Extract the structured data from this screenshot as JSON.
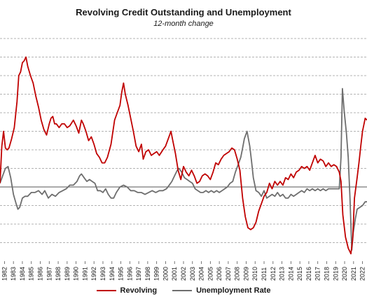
{
  "chart_data": {
    "type": "line",
    "title": "Revolving Credit Outstanding and Unemployment",
    "subtitle": "12-month change",
    "xlabel": "",
    "ylabel": "",
    "x_range": [
      1982,
      2023
    ],
    "x_tick_labels": [
      "1982",
      "1983",
      "1984",
      "1985",
      "1986",
      "1987",
      "1988",
      "1989",
      "1990",
      "1991",
      "1992",
      "1993",
      "1994",
      "1995",
      "1996",
      "1997",
      "1998",
      "1999",
      "2000",
      "2001",
      "2002",
      "2003",
      "2004",
      "2005",
      "2006",
      "2007",
      "2008",
      "2009",
      "2010",
      "2011",
      "2012",
      "2013",
      "2014",
      "2015",
      "2016",
      "2017",
      "2018",
      "2019",
      "2020",
      "2021",
      "2022"
    ],
    "y_range": [
      -4,
      8
    ],
    "grid": "horizontal dashed",
    "zero_line": 0,
    "legend_position": "bottom",
    "series": [
      {
        "name": "Revolving",
        "color": "#c00000",
        "points": [
          [
            1982.0,
            0.2
          ],
          [
            1982.2,
            2.2
          ],
          [
            1982.4,
            3.0
          ],
          [
            1982.6,
            2.1
          ],
          [
            1982.8,
            2.0
          ],
          [
            1983.0,
            2.1
          ],
          [
            1983.3,
            2.6
          ],
          [
            1983.6,
            3.2
          ],
          [
            1983.9,
            4.6
          ],
          [
            1984.1,
            6.0
          ],
          [
            1984.3,
            6.2
          ],
          [
            1984.5,
            6.7
          ],
          [
            1984.7,
            6.8
          ],
          [
            1984.9,
            7.0
          ],
          [
            1985.1,
            6.5
          ],
          [
            1985.4,
            6.0
          ],
          [
            1985.7,
            5.6
          ],
          [
            1986.0,
            4.9
          ],
          [
            1986.3,
            4.3
          ],
          [
            1986.6,
            3.6
          ],
          [
            1986.9,
            3.1
          ],
          [
            1987.2,
            2.8
          ],
          [
            1987.5,
            3.4
          ],
          [
            1987.7,
            3.7
          ],
          [
            1987.9,
            3.8
          ],
          [
            1988.1,
            3.4
          ],
          [
            1988.3,
            3.4
          ],
          [
            1988.6,
            3.2
          ],
          [
            1988.9,
            3.4
          ],
          [
            1989.2,
            3.4
          ],
          [
            1989.5,
            3.2
          ],
          [
            1989.8,
            3.3
          ],
          [
            1990.2,
            3.6
          ],
          [
            1990.5,
            3.3
          ],
          [
            1990.8,
            2.9
          ],
          [
            1991.1,
            3.6
          ],
          [
            1991.3,
            3.4
          ],
          [
            1991.6,
            3.0
          ],
          [
            1991.9,
            2.5
          ],
          [
            1992.2,
            2.7
          ],
          [
            1992.5,
            2.3
          ],
          [
            1992.8,
            1.8
          ],
          [
            1993.1,
            1.6
          ],
          [
            1993.4,
            1.3
          ],
          [
            1993.7,
            1.3
          ],
          [
            1994.0,
            1.6
          ],
          [
            1994.4,
            2.3
          ],
          [
            1994.8,
            3.6
          ],
          [
            1995.1,
            4.0
          ],
          [
            1995.4,
            4.4
          ],
          [
            1995.6,
            5.1
          ],
          [
            1995.8,
            5.6
          ],
          [
            1996.0,
            5.0
          ],
          [
            1996.3,
            4.4
          ],
          [
            1996.6,
            3.7
          ],
          [
            1996.9,
            3.0
          ],
          [
            1997.2,
            2.2
          ],
          [
            1997.5,
            1.9
          ],
          [
            1997.8,
            2.3
          ],
          [
            1998.0,
            1.5
          ],
          [
            1998.3,
            1.9
          ],
          [
            1998.6,
            2.0
          ],
          [
            1998.9,
            1.7
          ],
          [
            1999.2,
            1.8
          ],
          [
            1999.5,
            1.9
          ],
          [
            1999.8,
            1.7
          ],
          [
            2000.2,
            2.0
          ],
          [
            2000.5,
            2.2
          ],
          [
            2000.8,
            2.6
          ],
          [
            2001.1,
            3.0
          ],
          [
            2001.3,
            2.5
          ],
          [
            2001.6,
            1.8
          ],
          [
            2001.9,
            0.9
          ],
          [
            2002.2,
            0.4
          ],
          [
            2002.5,
            1.1
          ],
          [
            2002.8,
            0.8
          ],
          [
            2003.1,
            0.6
          ],
          [
            2003.4,
            0.9
          ],
          [
            2003.7,
            0.6
          ],
          [
            2004.0,
            0.2
          ],
          [
            2004.3,
            0.3
          ],
          [
            2004.6,
            0.6
          ],
          [
            2004.9,
            0.7
          ],
          [
            2005.2,
            0.6
          ],
          [
            2005.5,
            0.4
          ],
          [
            2005.8,
            0.8
          ],
          [
            2006.1,
            1.3
          ],
          [
            2006.4,
            1.2
          ],
          [
            2006.7,
            1.5
          ],
          [
            2007.0,
            1.7
          ],
          [
            2007.3,
            1.8
          ],
          [
            2007.6,
            1.9
          ],
          [
            2007.9,
            2.1
          ],
          [
            2008.2,
            2.0
          ],
          [
            2008.5,
            1.5
          ],
          [
            2008.8,
            0.9
          ],
          [
            2009.1,
            -0.6
          ],
          [
            2009.4,
            -1.6
          ],
          [
            2009.7,
            -2.2
          ],
          [
            2010.0,
            -2.3
          ],
          [
            2010.3,
            -2.2
          ],
          [
            2010.6,
            -1.9
          ],
          [
            2010.9,
            -1.3
          ],
          [
            2011.2,
            -0.9
          ],
          [
            2011.5,
            -0.5
          ],
          [
            2011.8,
            -0.3
          ],
          [
            2012.1,
            0.2
          ],
          [
            2012.4,
            -0.1
          ],
          [
            2012.7,
            0.3
          ],
          [
            2013.0,
            0.1
          ],
          [
            2013.3,
            0.3
          ],
          [
            2013.6,
            0.1
          ],
          [
            2013.9,
            0.5
          ],
          [
            2014.2,
            0.4
          ],
          [
            2014.5,
            0.7
          ],
          [
            2014.8,
            0.5
          ],
          [
            2015.1,
            0.8
          ],
          [
            2015.4,
            0.9
          ],
          [
            2015.7,
            1.1
          ],
          [
            2016.0,
            1.0
          ],
          [
            2016.3,
            1.1
          ],
          [
            2016.6,
            0.9
          ],
          [
            2016.9,
            1.3
          ],
          [
            2017.2,
            1.7
          ],
          [
            2017.5,
            1.3
          ],
          [
            2017.8,
            1.5
          ],
          [
            2018.1,
            1.4
          ],
          [
            2018.4,
            1.1
          ],
          [
            2018.7,
            1.3
          ],
          [
            2019.0,
            1.1
          ],
          [
            2019.3,
            1.2
          ],
          [
            2019.6,
            1.1
          ],
          [
            2019.9,
            0.8
          ],
          [
            2020.1,
            0.3
          ],
          [
            2020.3,
            -1.5
          ],
          [
            2020.6,
            -2.7
          ],
          [
            2020.9,
            -3.3
          ],
          [
            2021.2,
            -3.6
          ],
          [
            2021.4,
            -2.8
          ],
          [
            2021.6,
            -0.6
          ],
          [
            2021.9,
            0.5
          ],
          [
            2022.1,
            1.3
          ],
          [
            2022.3,
            2.2
          ],
          [
            2022.5,
            3.0
          ],
          [
            2022.8,
            3.7
          ],
          [
            2023.0,
            3.6
          ]
        ]
      },
      {
        "name": "Unemployment Rate",
        "color": "#6e6e6e",
        "points": [
          [
            1982.0,
            0.2
          ],
          [
            1982.3,
            0.6
          ],
          [
            1982.6,
            1.0
          ],
          [
            1982.9,
            1.1
          ],
          [
            1983.2,
            0.5
          ],
          [
            1983.5,
            -0.4
          ],
          [
            1983.8,
            -0.9
          ],
          [
            1984.0,
            -1.2
          ],
          [
            1984.2,
            -1.1
          ],
          [
            1984.5,
            -0.6
          ],
          [
            1984.8,
            -0.5
          ],
          [
            1985.1,
            -0.5
          ],
          [
            1985.5,
            -0.3
          ],
          [
            1985.9,
            -0.3
          ],
          [
            1986.3,
            -0.2
          ],
          [
            1986.7,
            -0.4
          ],
          [
            1987.0,
            -0.2
          ],
          [
            1987.4,
            -0.6
          ],
          [
            1987.8,
            -0.4
          ],
          [
            1988.2,
            -0.5
          ],
          [
            1988.6,
            -0.3
          ],
          [
            1989.0,
            -0.2
          ],
          [
            1989.4,
            -0.1
          ],
          [
            1989.8,
            0.1
          ],
          [
            1990.2,
            0.1
          ],
          [
            1990.6,
            0.3
          ],
          [
            1990.9,
            0.6
          ],
          [
            1991.1,
            0.7
          ],
          [
            1991.4,
            0.5
          ],
          [
            1991.7,
            0.3
          ],
          [
            1992.0,
            0.4
          ],
          [
            1992.3,
            0.3
          ],
          [
            1992.6,
            0.2
          ],
          [
            1992.9,
            -0.2
          ],
          [
            1993.2,
            -0.2
          ],
          [
            1993.5,
            -0.3
          ],
          [
            1993.8,
            -0.1
          ],
          [
            1994.1,
            -0.4
          ],
          [
            1994.4,
            -0.6
          ],
          [
            1994.7,
            -0.6
          ],
          [
            1995.0,
            -0.3
          ],
          [
            1995.4,
            0.0
          ],
          [
            1995.8,
            0.1
          ],
          [
            1996.2,
            0.0
          ],
          [
            1996.6,
            -0.2
          ],
          [
            1997.0,
            -0.2
          ],
          [
            1997.4,
            -0.3
          ],
          [
            1997.8,
            -0.3
          ],
          [
            1998.2,
            -0.4
          ],
          [
            1998.6,
            -0.3
          ],
          [
            1999.0,
            -0.2
          ],
          [
            1999.4,
            -0.3
          ],
          [
            1999.8,
            -0.2
          ],
          [
            2000.2,
            -0.2
          ],
          [
            2000.6,
            -0.1
          ],
          [
            2000.9,
            0.1
          ],
          [
            2001.2,
            0.3
          ],
          [
            2001.5,
            0.6
          ],
          [
            2001.8,
            0.9
          ],
          [
            2002.0,
            1.0
          ],
          [
            2002.3,
            0.8
          ],
          [
            2002.6,
            0.5
          ],
          [
            2002.9,
            0.4
          ],
          [
            2003.2,
            0.3
          ],
          [
            2003.5,
            0.2
          ],
          [
            2003.8,
            -0.1
          ],
          [
            2004.1,
            -0.2
          ],
          [
            2004.4,
            -0.3
          ],
          [
            2004.7,
            -0.3
          ],
          [
            2005.0,
            -0.2
          ],
          [
            2005.3,
            -0.3
          ],
          [
            2005.6,
            -0.2
          ],
          [
            2005.9,
            -0.3
          ],
          [
            2006.2,
            -0.2
          ],
          [
            2006.5,
            -0.3
          ],
          [
            2006.8,
            -0.2
          ],
          [
            2007.1,
            -0.1
          ],
          [
            2007.4,
            0.0
          ],
          [
            2007.7,
            0.2
          ],
          [
            2008.0,
            0.3
          ],
          [
            2008.3,
            0.8
          ],
          [
            2008.6,
            1.2
          ],
          [
            2008.9,
            1.6
          ],
          [
            2009.1,
            2.1
          ],
          [
            2009.3,
            2.6
          ],
          [
            2009.6,
            3.0
          ],
          [
            2009.9,
            2.2
          ],
          [
            2010.1,
            1.4
          ],
          [
            2010.3,
            0.5
          ],
          [
            2010.6,
            -0.2
          ],
          [
            2010.9,
            -0.3
          ],
          [
            2011.2,
            -0.5
          ],
          [
            2011.5,
            -0.2
          ],
          [
            2011.8,
            -0.6
          ],
          [
            2012.1,
            -0.5
          ],
          [
            2012.4,
            -0.4
          ],
          [
            2012.7,
            -0.5
          ],
          [
            2013.0,
            -0.3
          ],
          [
            2013.3,
            -0.5
          ],
          [
            2013.6,
            -0.4
          ],
          [
            2013.9,
            -0.6
          ],
          [
            2014.2,
            -0.6
          ],
          [
            2014.5,
            -0.4
          ],
          [
            2014.8,
            -0.5
          ],
          [
            2015.1,
            -0.4
          ],
          [
            2015.4,
            -0.3
          ],
          [
            2015.7,
            -0.2
          ],
          [
            2016.0,
            -0.3
          ],
          [
            2016.3,
            -0.1
          ],
          [
            2016.6,
            -0.2
          ],
          [
            2016.9,
            -0.1
          ],
          [
            2017.2,
            -0.2
          ],
          [
            2017.5,
            -0.1
          ],
          [
            2017.8,
            -0.2
          ],
          [
            2018.1,
            -0.1
          ],
          [
            2018.4,
            -0.2
          ],
          [
            2018.7,
            -0.1
          ],
          [
            2019.0,
            -0.1
          ],
          [
            2019.3,
            -0.1
          ],
          [
            2019.6,
            -0.1
          ],
          [
            2019.9,
            -0.1
          ],
          [
            2020.1,
            1.6
          ],
          [
            2020.25,
            5.3
          ],
          [
            2020.45,
            4.1
          ],
          [
            2020.7,
            2.9
          ],
          [
            2020.9,
            1.6
          ],
          [
            2021.1,
            -0.6
          ],
          [
            2021.3,
            -3.4
          ],
          [
            2021.45,
            -2.5
          ],
          [
            2021.7,
            -1.7
          ],
          [
            2021.9,
            -1.2
          ],
          [
            2022.2,
            -1.1
          ],
          [
            2022.5,
            -1.0
          ],
          [
            2022.8,
            -0.8
          ],
          [
            2023.0,
            -0.8
          ]
        ]
      }
    ]
  },
  "legend": {
    "revolving": "Revolving",
    "unemployment": "Unemployment Rate"
  }
}
